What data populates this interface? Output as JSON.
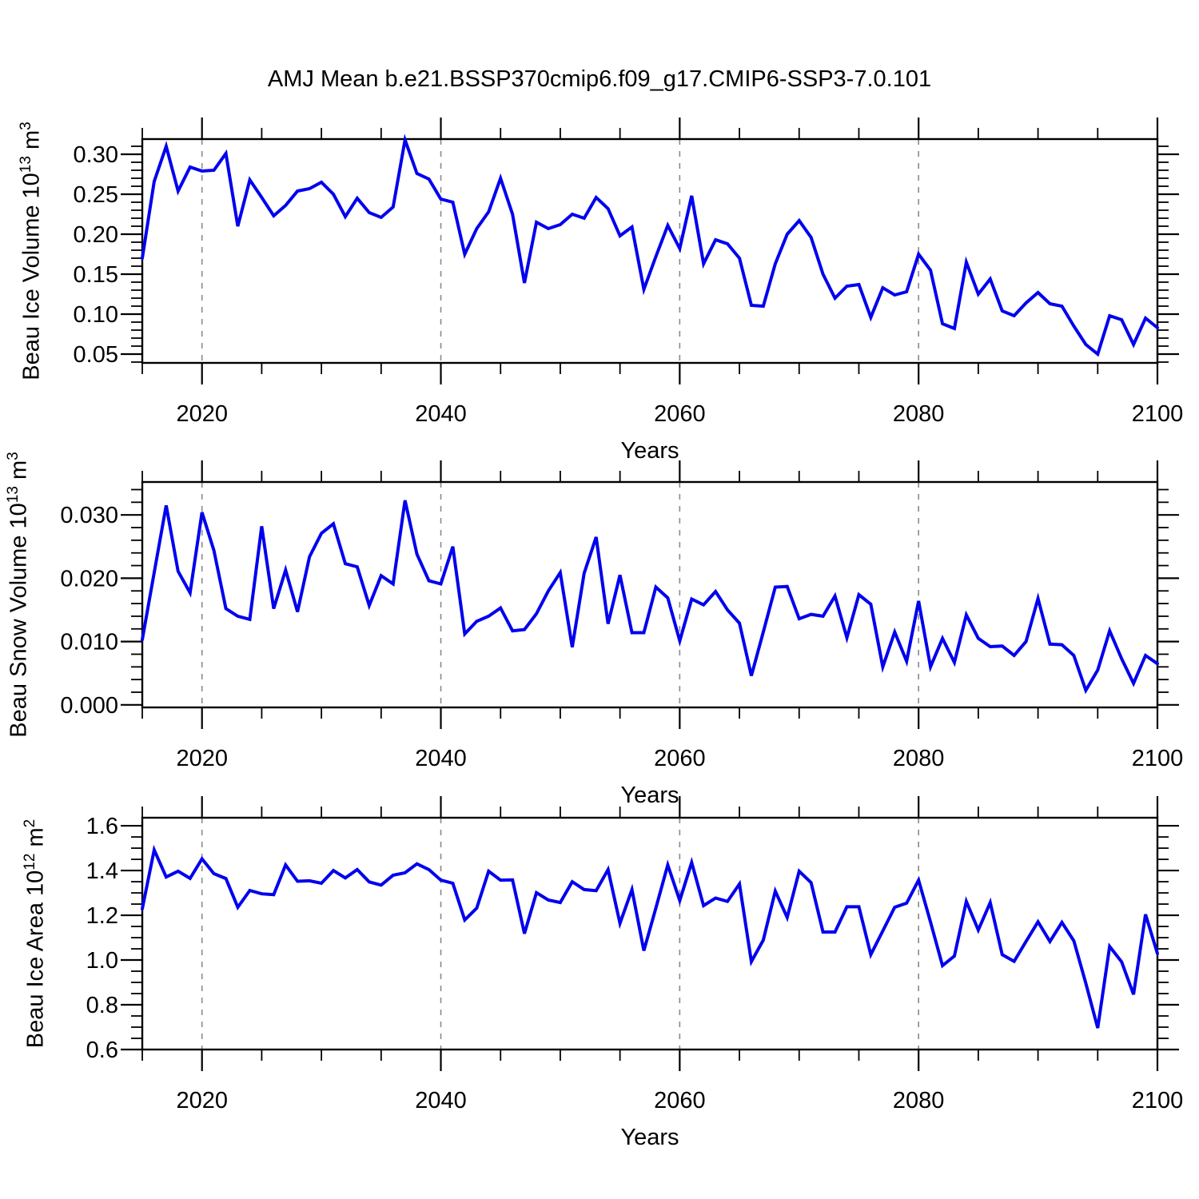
{
  "title": "AMJ Mean b.e21.BSSP370cmip6.f09_g17.CMIP6-SSP3-7.0.101",
  "line_color": "#0000ee",
  "gridline_color": "#8a8a8a",
  "axis_color": "#000000",
  "background_color": "#ffffff",
  "x_axis": {
    "label": "Years",
    "tick_labels": [
      "2020",
      "2040",
      "2060",
      "2080",
      "2100"
    ]
  },
  "charts": [
    {
      "name": "ice-volume",
      "ylabel": {
        "prefix": "Beau Ice Volume 10",
        "exp": "13",
        "unit_base": " m",
        "unit_exp": "3"
      },
      "y_tick_labels": [
        "0.05",
        "0.10",
        "0.15",
        "0.20",
        "0.25",
        "0.30"
      ]
    },
    {
      "name": "snow-volume",
      "ylabel": {
        "prefix": "Beau Snow Volume 10",
        "exp": "13",
        "unit_base": " m",
        "unit_exp": "3"
      },
      "y_tick_labels": [
        "0.000",
        "0.010",
        "0.020",
        "0.030"
      ]
    },
    {
      "name": "ice-area",
      "ylabel": {
        "prefix": "Beau Ice Area 10",
        "exp": "12",
        "unit_base": " m",
        "unit_exp": "2"
      },
      "y_tick_labels": [
        "0.6",
        "0.8",
        "1.0",
        "1.2",
        "1.4",
        "1.6"
      ]
    }
  ],
  "chart_data": {
    "type": "line",
    "title": "AMJ Mean b.e21.BSSP370cmip6.f09_g17.CMIP6-SSP3-7.0.101",
    "xlabel": "Years",
    "x_range": [
      2015,
      2100
    ],
    "x_ticks_major": [
      2020,
      2040,
      2060,
      2080,
      2100
    ],
    "x_minor_step": 5,
    "gridlines_x": [
      2020,
      2040,
      2060,
      2080
    ],
    "grid_style": "dashed-vertical",
    "legend": "none",
    "x": [
      2015,
      2016,
      2017,
      2018,
      2019,
      2020,
      2021,
      2022,
      2023,
      2024,
      2025,
      2026,
      2027,
      2028,
      2029,
      2030,
      2031,
      2032,
      2033,
      2034,
      2035,
      2036,
      2037,
      2038,
      2039,
      2040,
      2041,
      2042,
      2043,
      2044,
      2045,
      2046,
      2047,
      2048,
      2049,
      2050,
      2051,
      2052,
      2053,
      2054,
      2055,
      2056,
      2057,
      2058,
      2059,
      2060,
      2061,
      2062,
      2063,
      2064,
      2065,
      2066,
      2067,
      2068,
      2069,
      2070,
      2071,
      2072,
      2073,
      2074,
      2075,
      2076,
      2077,
      2078,
      2079,
      2080,
      2081,
      2082,
      2083,
      2084,
      2085,
      2086,
      2087,
      2088,
      2089,
      2090,
      2091,
      2092,
      2093,
      2094,
      2095,
      2096,
      2097,
      2098,
      2099,
      2100
    ],
    "series": [
      {
        "name": "Beau Ice Volume",
        "ylabel": "Beau Ice Volume 10^13 m^3",
        "ylim": [
          0.039,
          0.319
        ],
        "y_ticks_major": [
          0.05,
          0.1,
          0.15,
          0.2,
          0.25,
          0.3
        ],
        "y_minor_step": 0.01,
        "values": [
          0.17,
          0.266,
          0.31,
          0.254,
          0.284,
          0.279,
          0.28,
          0.301,
          0.21,
          0.268,
          0.246,
          0.223,
          0.236,
          0.254,
          0.257,
          0.265,
          0.25,
          0.222,
          0.245,
          0.227,
          0.221,
          0.234,
          0.318,
          0.276,
          0.269,
          0.244,
          0.24,
          0.175,
          0.207,
          0.228,
          0.27,
          0.225,
          0.139,
          0.215,
          0.207,
          0.212,
          0.225,
          0.22,
          0.246,
          0.232,
          0.198,
          0.209,
          0.131,
          0.172,
          0.211,
          0.182,
          0.248,
          0.163,
          0.193,
          0.188,
          0.17,
          0.111,
          0.11,
          0.163,
          0.2,
          0.217,
          0.196,
          0.15,
          0.12,
          0.135,
          0.137,
          0.096,
          0.133,
          0.124,
          0.128,
          0.175,
          0.155,
          0.088,
          0.082,
          0.165,
          0.125,
          0.144,
          0.104,
          0.098,
          0.114,
          0.127,
          0.113,
          0.11,
          0.085,
          0.062,
          0.05,
          0.098,
          0.093,
          0.062,
          0.095,
          0.083
        ]
      },
      {
        "name": "Beau Snow Volume",
        "ylabel": "Beau Snow Volume 10^13 m^3",
        "ylim": [
          -0.0004,
          0.0352
        ],
        "y_ticks_major": [
          0.0,
          0.01,
          0.02,
          0.03
        ],
        "y_minor_step": 0.002,
        "values": [
          0.0103,
          0.0209,
          0.0315,
          0.0211,
          0.0177,
          0.0304,
          0.0244,
          0.0152,
          0.014,
          0.0135,
          0.0282,
          0.0152,
          0.0213,
          0.0147,
          0.0234,
          0.0271,
          0.0286,
          0.0223,
          0.0218,
          0.0157,
          0.0204,
          0.0191,
          0.0323,
          0.0238,
          0.0196,
          0.0191,
          0.025,
          0.0112,
          0.0132,
          0.014,
          0.0153,
          0.0117,
          0.0119,
          0.0144,
          0.018,
          0.0209,
          0.0091,
          0.0208,
          0.0265,
          0.0128,
          0.0205,
          0.0114,
          0.0114,
          0.0186,
          0.0169,
          0.0101,
          0.0167,
          0.0158,
          0.0179,
          0.015,
          0.0129,
          0.0046,
          0.0115,
          0.0186,
          0.0187,
          0.0136,
          0.0143,
          0.014,
          0.0172,
          0.0106,
          0.0174,
          0.0159,
          0.006,
          0.0115,
          0.0069,
          0.0164,
          0.006,
          0.0105,
          0.0067,
          0.0142,
          0.0105,
          0.0092,
          0.0093,
          0.0078,
          0.01,
          0.0168,
          0.0096,
          0.0095,
          0.0078,
          0.0023,
          0.0055,
          0.0117,
          0.0073,
          0.0034,
          0.0078,
          0.0065
        ]
      },
      {
        "name": "Beau Ice Area",
        "ylabel": "Beau Ice Area 10^12 m^2",
        "ylim": [
          0.6,
          1.636
        ],
        "y_ticks_major": [
          0.6,
          0.8,
          1.0,
          1.2,
          1.4,
          1.6
        ],
        "y_minor_step": 0.05,
        "values": [
          1.229,
          1.492,
          1.371,
          1.397,
          1.365,
          1.452,
          1.386,
          1.364,
          1.236,
          1.311,
          1.296,
          1.292,
          1.425,
          1.352,
          1.354,
          1.343,
          1.4,
          1.367,
          1.404,
          1.349,
          1.335,
          1.379,
          1.39,
          1.43,
          1.404,
          1.357,
          1.343,
          1.179,
          1.232,
          1.397,
          1.357,
          1.358,
          1.118,
          1.301,
          1.268,
          1.257,
          1.35,
          1.315,
          1.31,
          1.404,
          1.164,
          1.315,
          1.042,
          1.232,
          1.425,
          1.266,
          1.436,
          1.243,
          1.277,
          1.262,
          1.34,
          0.993,
          1.089,
          1.308,
          1.19,
          1.397,
          1.346,
          1.125,
          1.125,
          1.238,
          1.238,
          1.024,
          1.13,
          1.236,
          1.254,
          1.357,
          1.17,
          0.975,
          1.018,
          1.262,
          1.134,
          1.257,
          1.024,
          0.994,
          1.083,
          1.171,
          1.083,
          1.168,
          1.086,
          0.896,
          0.696,
          1.061,
          0.992,
          0.846,
          1.204,
          1.029
        ]
      }
    ]
  }
}
